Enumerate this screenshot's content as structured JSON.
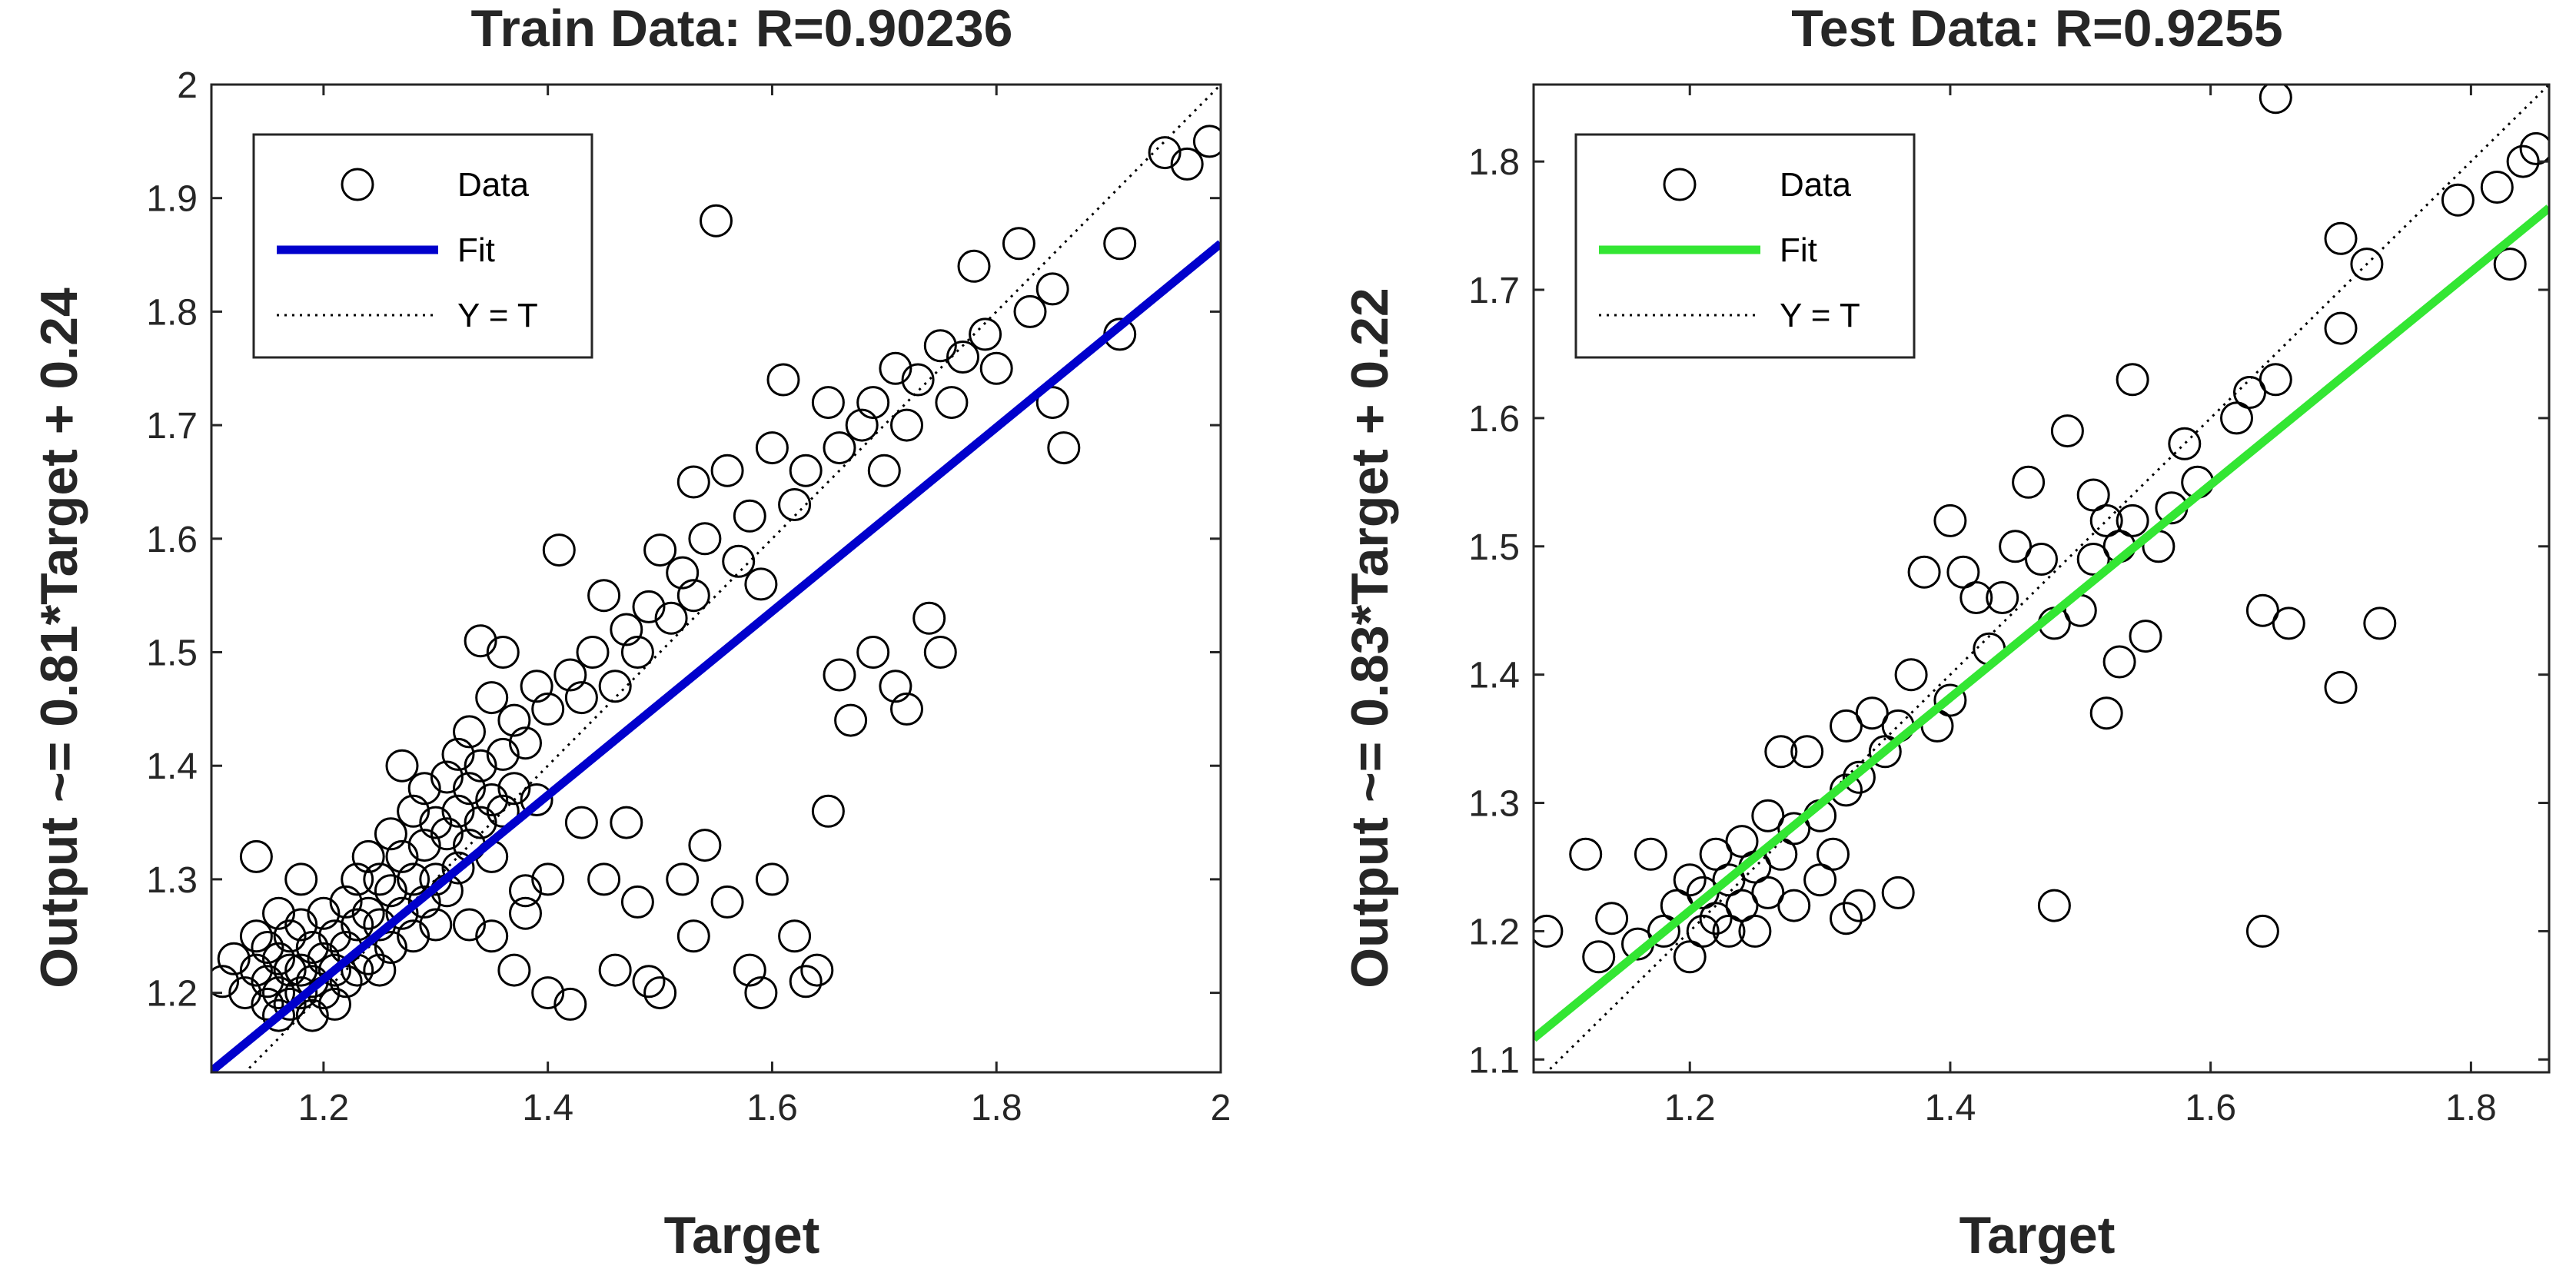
{
  "chart_data": [
    {
      "type": "scatter",
      "title": "Train Data: R=0.90236",
      "xlabel": "Target",
      "ylabel": "Output ~= 0.81*Target + 0.24",
      "xlim": [
        1.1,
        2.0
      ],
      "ylim": [
        1.13,
        2.0
      ],
      "xticks": [
        1.2,
        1.4,
        1.6,
        1.8,
        2.0
      ],
      "xtick_labels": [
        "1.2",
        "1.4",
        "1.6",
        "1.8",
        "2"
      ],
      "yticks": [
        1.2,
        1.3,
        1.4,
        1.5,
        1.6,
        1.7,
        1.8,
        1.9,
        2.0
      ],
      "ytick_labels": [
        "1.2",
        "1.3",
        "1.4",
        "1.5",
        "1.6",
        "1.7",
        "1.8",
        "1.9",
        "2"
      ],
      "fit": {
        "slope": 0.81,
        "intercept": 0.24,
        "color": "#0000cc"
      },
      "legend": {
        "position": "top-left",
        "entries": [
          "Data",
          "Fit",
          "Y = T"
        ]
      },
      "series": [
        {
          "name": "Data",
          "points": [
            [
              1.11,
              1.21
            ],
            [
              1.12,
              1.23
            ],
            [
              1.13,
              1.2
            ],
            [
              1.14,
              1.32
            ],
            [
              1.14,
              1.25
            ],
            [
              1.14,
              1.22
            ],
            [
              1.15,
              1.24
            ],
            [
              1.15,
              1.21
            ],
            [
              1.15,
              1.19
            ],
            [
              1.16,
              1.27
            ],
            [
              1.16,
              1.23
            ],
            [
              1.16,
              1.2
            ],
            [
              1.16,
              1.18
            ],
            [
              1.17,
              1.25
            ],
            [
              1.17,
              1.22
            ],
            [
              1.17,
              1.19
            ],
            [
              1.18,
              1.3
            ],
            [
              1.18,
              1.26
            ],
            [
              1.18,
              1.22
            ],
            [
              1.18,
              1.2
            ],
            [
              1.19,
              1.24
            ],
            [
              1.19,
              1.21
            ],
            [
              1.19,
              1.18
            ],
            [
              1.2,
              1.27
            ],
            [
              1.2,
              1.23
            ],
            [
              1.2,
              1.2
            ],
            [
              1.21,
              1.25
            ],
            [
              1.21,
              1.22
            ],
            [
              1.21,
              1.19
            ],
            [
              1.22,
              1.28
            ],
            [
              1.22,
              1.24
            ],
            [
              1.22,
              1.21
            ],
            [
              1.23,
              1.3
            ],
            [
              1.23,
              1.26
            ],
            [
              1.23,
              1.22
            ],
            [
              1.24,
              1.32
            ],
            [
              1.24,
              1.27
            ],
            [
              1.24,
              1.23
            ],
            [
              1.25,
              1.3
            ],
            [
              1.25,
              1.26
            ],
            [
              1.25,
              1.22
            ],
            [
              1.26,
              1.34
            ],
            [
              1.26,
              1.29
            ],
            [
              1.26,
              1.24
            ],
            [
              1.27,
              1.4
            ],
            [
              1.27,
              1.32
            ],
            [
              1.27,
              1.27
            ],
            [
              1.28,
              1.36
            ],
            [
              1.28,
              1.3
            ],
            [
              1.28,
              1.25
            ],
            [
              1.29,
              1.38
            ],
            [
              1.29,
              1.33
            ],
            [
              1.29,
              1.28
            ],
            [
              1.3,
              1.35
            ],
            [
              1.3,
              1.3
            ],
            [
              1.3,
              1.26
            ],
            [
              1.31,
              1.39
            ],
            [
              1.31,
              1.34
            ],
            [
              1.31,
              1.29
            ],
            [
              1.32,
              1.41
            ],
            [
              1.32,
              1.36
            ],
            [
              1.32,
              1.31
            ],
            [
              1.33,
              1.43
            ],
            [
              1.33,
              1.38
            ],
            [
              1.33,
              1.33
            ],
            [
              1.34,
              1.51
            ],
            [
              1.34,
              1.4
            ],
            [
              1.34,
              1.35
            ],
            [
              1.35,
              1.46
            ],
            [
              1.35,
              1.37
            ],
            [
              1.35,
              1.32
            ],
            [
              1.36,
              1.5
            ],
            [
              1.36,
              1.41
            ],
            [
              1.36,
              1.36
            ],
            [
              1.37,
              1.44
            ],
            [
              1.37,
              1.38
            ],
            [
              1.38,
              1.42
            ],
            [
              1.38,
              1.29
            ],
            [
              1.39,
              1.47
            ],
            [
              1.39,
              1.37
            ],
            [
              1.4,
              1.45
            ],
            [
              1.4,
              1.3
            ],
            [
              1.41,
              1.59
            ],
            [
              1.42,
              1.48
            ],
            [
              1.43,
              1.46
            ],
            [
              1.44,
              1.5
            ],
            [
              1.45,
              1.55
            ],
            [
              1.46,
              1.47
            ],
            [
              1.47,
              1.52
            ],
            [
              1.48,
              1.5
            ],
            [
              1.49,
              1.54
            ],
            [
              1.5,
              1.59
            ],
            [
              1.51,
              1.53
            ],
            [
              1.52,
              1.57
            ],
            [
              1.53,
              1.65
            ],
            [
              1.53,
              1.55
            ],
            [
              1.54,
              1.6
            ],
            [
              1.55,
              1.88
            ],
            [
              1.56,
              1.66
            ],
            [
              1.57,
              1.58
            ],
            [
              1.58,
              1.62
            ],
            [
              1.59,
              1.56
            ],
            [
              1.6,
              1.68
            ],
            [
              1.61,
              1.74
            ],
            [
              1.62,
              1.63
            ],
            [
              1.63,
              1.66
            ],
            [
              1.65,
              1.72
            ],
            [
              1.66,
              1.68
            ],
            [
              1.68,
              1.7
            ],
            [
              1.69,
              1.72
            ],
            [
              1.7,
              1.66
            ],
            [
              1.71,
              1.75
            ],
            [
              1.72,
              1.7
            ],
            [
              1.73,
              1.74
            ],
            [
              1.75,
              1.77
            ],
            [
              1.76,
              1.72
            ],
            [
              1.77,
              1.76
            ],
            [
              1.78,
              1.84
            ],
            [
              1.79,
              1.78
            ],
            [
              1.8,
              1.75
            ],
            [
              1.82,
              1.86
            ],
            [
              1.83,
              1.8
            ],
            [
              1.85,
              1.82
            ],
            [
              1.85,
              1.72
            ],
            [
              1.86,
              1.68
            ],
            [
              1.91,
              1.86
            ],
            [
              1.91,
              1.78
            ],
            [
              1.95,
              1.94
            ],
            [
              1.97,
              1.93
            ],
            [
              1.99,
              1.95
            ],
            [
              1.33,
              1.26
            ],
            [
              1.35,
              1.25
            ],
            [
              1.37,
              1.22
            ],
            [
              1.38,
              1.27
            ],
            [
              1.4,
              1.2
            ],
            [
              1.42,
              1.19
            ],
            [
              1.43,
              1.35
            ],
            [
              1.45,
              1.3
            ],
            [
              1.46,
              1.22
            ],
            [
              1.47,
              1.35
            ],
            [
              1.48,
              1.28
            ],
            [
              1.49,
              1.21
            ],
            [
              1.5,
              1.2
            ],
            [
              1.52,
              1.3
            ],
            [
              1.53,
              1.25
            ],
            [
              1.54,
              1.33
            ],
            [
              1.56,
              1.28
            ],
            [
              1.58,
              1.22
            ],
            [
              1.59,
              1.2
            ],
            [
              1.6,
              1.3
            ],
            [
              1.62,
              1.25
            ],
            [
              1.63,
              1.21
            ],
            [
              1.64,
              1.22
            ],
            [
              1.65,
              1.36
            ],
            [
              1.66,
              1.48
            ],
            [
              1.67,
              1.44
            ],
            [
              1.69,
              1.5
            ],
            [
              1.71,
              1.47
            ],
            [
              1.72,
              1.45
            ],
            [
              1.74,
              1.53
            ],
            [
              1.75,
              1.5
            ]
          ]
        }
      ]
    },
    {
      "type": "scatter",
      "title": "Test Data: R=0.9255",
      "xlabel": "Target",
      "ylabel": "Output ~= 0.83*Target + 0.22",
      "xlim": [
        1.08,
        1.86
      ],
      "ylim": [
        1.09,
        1.86
      ],
      "xticks": [
        1.2,
        1.4,
        1.6,
        1.8
      ],
      "xtick_labels": [
        "1.2",
        "1.4",
        "1.6",
        "1.8"
      ],
      "yticks": [
        1.1,
        1.2,
        1.3,
        1.4,
        1.5,
        1.6,
        1.7,
        1.8
      ],
      "ytick_labels": [
        "1.1",
        "1.2",
        "1.3",
        "1.4",
        "1.5",
        "1.6",
        "1.7",
        "1.8"
      ],
      "fit": {
        "slope": 0.83,
        "intercept": 0.22,
        "color": "#33e633"
      },
      "legend": {
        "position": "top-left",
        "entries": [
          "Data",
          "Fit",
          "Y = T"
        ]
      },
      "series": [
        {
          "name": "Data",
          "points": [
            [
              1.09,
              1.2
            ],
            [
              1.12,
              1.26
            ],
            [
              1.13,
              1.18
            ],
            [
              1.14,
              1.21
            ],
            [
              1.16,
              1.19
            ],
            [
              1.17,
              1.26
            ],
            [
              1.18,
              1.2
            ],
            [
              1.19,
              1.22
            ],
            [
              1.2,
              1.18
            ],
            [
              1.2,
              1.24
            ],
            [
              1.21,
              1.2
            ],
            [
              1.21,
              1.23
            ],
            [
              1.22,
              1.26
            ],
            [
              1.22,
              1.21
            ],
            [
              1.23,
              1.24
            ],
            [
              1.23,
              1.2
            ],
            [
              1.24,
              1.27
            ],
            [
              1.24,
              1.22
            ],
            [
              1.25,
              1.25
            ],
            [
              1.25,
              1.2
            ],
            [
              1.26,
              1.29
            ],
            [
              1.26,
              1.23
            ],
            [
              1.27,
              1.34
            ],
            [
              1.27,
              1.26
            ],
            [
              1.28,
              1.28
            ],
            [
              1.28,
              1.22
            ],
            [
              1.29,
              1.34
            ],
            [
              1.3,
              1.29
            ],
            [
              1.3,
              1.24
            ],
            [
              1.31,
              1.26
            ],
            [
              1.32,
              1.36
            ],
            [
              1.32,
              1.31
            ],
            [
              1.32,
              1.21
            ],
            [
              1.33,
              1.32
            ],
            [
              1.33,
              1.22
            ],
            [
              1.34,
              1.37
            ],
            [
              1.35,
              1.34
            ],
            [
              1.36,
              1.36
            ],
            [
              1.36,
              1.23
            ],
            [
              1.37,
              1.4
            ],
            [
              1.38,
              1.48
            ],
            [
              1.39,
              1.36
            ],
            [
              1.4,
              1.52
            ],
            [
              1.4,
              1.38
            ],
            [
              1.41,
              1.48
            ],
            [
              1.42,
              1.46
            ],
            [
              1.43,
              1.42
            ],
            [
              1.44,
              1.46
            ],
            [
              1.45,
              1.5
            ],
            [
              1.46,
              1.55
            ],
            [
              1.47,
              1.49
            ],
            [
              1.48,
              1.22
            ],
            [
              1.48,
              1.44
            ],
            [
              1.49,
              1.59
            ],
            [
              1.5,
              1.45
            ],
            [
              1.51,
              1.54
            ],
            [
              1.51,
              1.49
            ],
            [
              1.52,
              1.52
            ],
            [
              1.52,
              1.37
            ],
            [
              1.53,
              1.5
            ],
            [
              1.53,
              1.41
            ],
            [
              1.54,
              1.63
            ],
            [
              1.54,
              1.52
            ],
            [
              1.55,
              1.43
            ],
            [
              1.56,
              1.5
            ],
            [
              1.57,
              1.53
            ],
            [
              1.58,
              1.58
            ],
            [
              1.59,
              1.55
            ],
            [
              1.62,
              1.6
            ],
            [
              1.63,
              1.62
            ],
            [
              1.64,
              1.45
            ],
            [
              1.64,
              1.2
            ],
            [
              1.65,
              1.85
            ],
            [
              1.65,
              1.63
            ],
            [
              1.66,
              1.44
            ],
            [
              1.7,
              1.74
            ],
            [
              1.7,
              1.67
            ],
            [
              1.7,
              1.39
            ],
            [
              1.72,
              1.72
            ],
            [
              1.73,
              1.44
            ],
            [
              1.79,
              1.77
            ],
            [
              1.82,
              1.78
            ],
            [
              1.83,
              1.72
            ],
            [
              1.84,
              1.8
            ],
            [
              1.85,
              1.81
            ]
          ]
        }
      ]
    }
  ]
}
